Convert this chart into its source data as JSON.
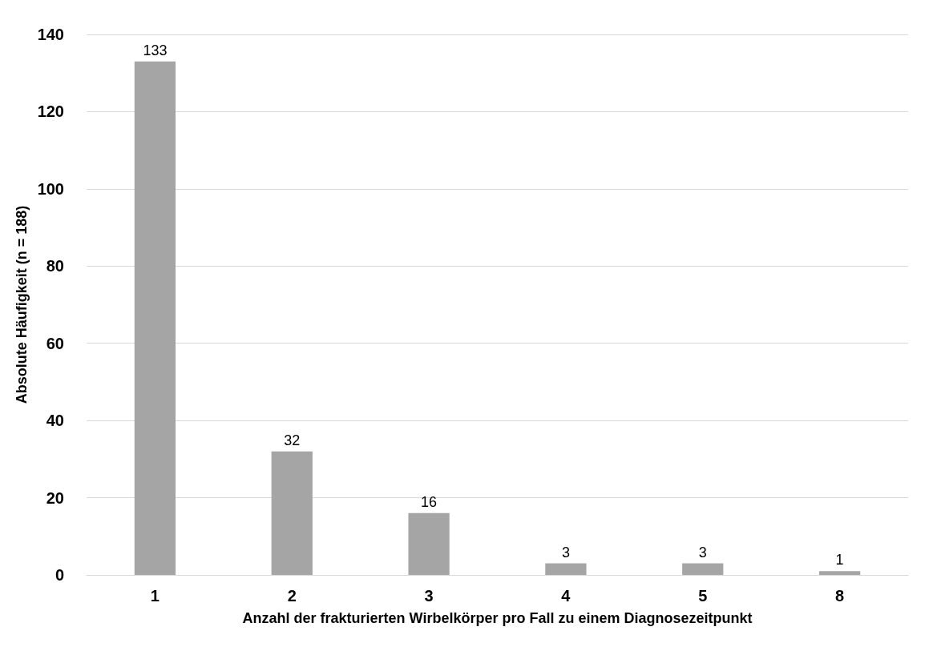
{
  "chart_data": {
    "type": "bar",
    "xlabel": "Anzahl der frakturierten Wirbelkörper pro Fall zu einem Diagnosezeitpunkt",
    "ylabel": "Absolute Häufigkeit (n = 188)",
    "categories": [
      "1",
      "2",
      "3",
      "4",
      "5",
      "8"
    ],
    "values": [
      133,
      32,
      16,
      3,
      3,
      1
    ],
    "color": "#a5a5a5",
    "ylim": [
      0,
      140
    ],
    "yticks": [
      0,
      20,
      40,
      60,
      80,
      100,
      120,
      140
    ],
    "grid": "y",
    "data_labels": true
  }
}
